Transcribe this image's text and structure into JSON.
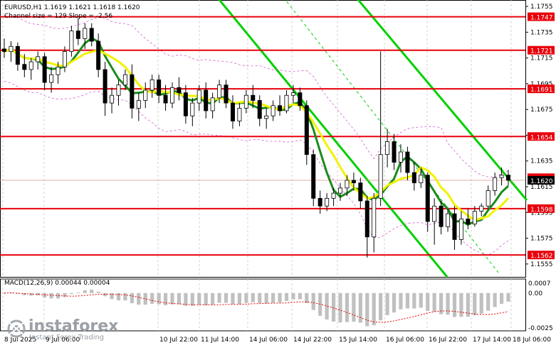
{
  "header": {
    "symbol_line": "EURUSD,H1  1.1619 1.1621 1.1618 1.1620",
    "channel_line": "Channel size = 129 Slope = -2.56"
  },
  "macd": {
    "label": "MACD(12,26,9) 0.00044 0.00004",
    "ticks": [
      "0.0007",
      "0.00",
      "-0.0025"
    ]
  },
  "watermark": {
    "brand": "instaforex",
    "tagline": "Instant Forex Trading"
  },
  "colors": {
    "level_line": "#e8000b",
    "level_label_bg": "#e8000b",
    "current_price_bg": "#000000",
    "channel": "#00d000",
    "ma_fast": "#f2f200",
    "ma_slow": "#1a8c1a",
    "envelope": "#d25ad2",
    "candle": "#000000",
    "macd_hist": "#c0c0c0",
    "macd_signal": "#e80000"
  },
  "chart_data": {
    "type": "candlestick",
    "symbol": "EURUSD",
    "timeframe": "H1",
    "ylim": [
      1.1545,
      1.176
    ],
    "y_ticks": [
      "1.1755",
      "1.1735",
      "1.1715",
      "1.1695",
      "1.1675",
      "1.1655",
      "1.1635",
      "1.1615",
      "1.1595",
      "1.1575",
      "1.1555"
    ],
    "x_ticks": [
      "8 Jul 2025",
      "9 Jul 06:00",
      "10 Jul 22:00",
      "11 Jul 14:00",
      "14 Jul 06:00",
      "14 Jul 22:00",
      "15 Jul 14:00",
      "16 Jul 06:00",
      "16 Jul 22:00",
      "17 Jul 14:00",
      "18 Jul 06:00"
    ],
    "levels": [
      {
        "value": 1.1747,
        "label": "1.1747"
      },
      {
        "value": 1.1721,
        "label": "1.1721"
      },
      {
        "value": 1.1691,
        "label": "1.1691"
      },
      {
        "value": 1.1654,
        "label": "1.1654"
      },
      {
        "value": 1.1598,
        "label": "1.1598"
      },
      {
        "value": 1.1562,
        "label": "1.1562"
      }
    ],
    "current_price": {
      "value": 1.162,
      "label": "1.1620"
    },
    "hidden_level_label": "1.1622",
    "ohlc": [
      {
        "o": 1.1722,
        "h": 1.173,
        "l": 1.1715,
        "c": 1.172
      },
      {
        "o": 1.172,
        "h": 1.1728,
        "l": 1.1712,
        "c": 1.1724
      },
      {
        "o": 1.1724,
        "h": 1.1727,
        "l": 1.1705,
        "c": 1.171
      },
      {
        "o": 1.171,
        "h": 1.1718,
        "l": 1.17,
        "c": 1.1706
      },
      {
        "o": 1.1706,
        "h": 1.1715,
        "l": 1.1698,
        "c": 1.1712
      },
      {
        "o": 1.1712,
        "h": 1.172,
        "l": 1.1706,
        "c": 1.1716
      },
      {
        "o": 1.1716,
        "h": 1.1719,
        "l": 1.169,
        "c": 1.1696
      },
      {
        "o": 1.1696,
        "h": 1.1708,
        "l": 1.1688,
        "c": 1.1702
      },
      {
        "o": 1.1702,
        "h": 1.1712,
        "l": 1.1695,
        "c": 1.1708
      },
      {
        "o": 1.1708,
        "h": 1.1724,
        "l": 1.1704,
        "c": 1.172
      },
      {
        "o": 1.172,
        "h": 1.174,
        "l": 1.1716,
        "c": 1.1736
      },
      {
        "o": 1.1736,
        "h": 1.1746,
        "l": 1.1725,
        "c": 1.173
      },
      {
        "o": 1.173,
        "h": 1.1742,
        "l": 1.1722,
        "c": 1.1738
      },
      {
        "o": 1.1738,
        "h": 1.1742,
        "l": 1.1724,
        "c": 1.1728
      },
      {
        "o": 1.1728,
        "h": 1.1734,
        "l": 1.17,
        "c": 1.1706
      },
      {
        "o": 1.1706,
        "h": 1.1712,
        "l": 1.167,
        "c": 1.168
      },
      {
        "o": 1.168,
        "h": 1.1692,
        "l": 1.1672,
        "c": 1.1686
      },
      {
        "o": 1.1686,
        "h": 1.1698,
        "l": 1.1678,
        "c": 1.1694
      },
      {
        "o": 1.1694,
        "h": 1.1706,
        "l": 1.169,
        "c": 1.1702
      },
      {
        "o": 1.1702,
        "h": 1.171,
        "l": 1.1668,
        "c": 1.1676
      },
      {
        "o": 1.1676,
        "h": 1.1688,
        "l": 1.1666,
        "c": 1.1682
      },
      {
        "o": 1.1682,
        "h": 1.1696,
        "l": 1.1676,
        "c": 1.169
      },
      {
        "o": 1.169,
        "h": 1.1702,
        "l": 1.1684,
        "c": 1.1698
      },
      {
        "o": 1.1698,
        "h": 1.1702,
        "l": 1.168,
        "c": 1.1686
      },
      {
        "o": 1.1686,
        "h": 1.1694,
        "l": 1.1674,
        "c": 1.168
      },
      {
        "o": 1.168,
        "h": 1.1696,
        "l": 1.1676,
        "c": 1.1692
      },
      {
        "o": 1.1692,
        "h": 1.17,
        "l": 1.1682,
        "c": 1.1688
      },
      {
        "o": 1.1688,
        "h": 1.1694,
        "l": 1.1664,
        "c": 1.167
      },
      {
        "o": 1.167,
        "h": 1.1684,
        "l": 1.1662,
        "c": 1.168
      },
      {
        "o": 1.168,
        "h": 1.1694,
        "l": 1.1674,
        "c": 1.169
      },
      {
        "o": 1.169,
        "h": 1.1696,
        "l": 1.1668,
        "c": 1.1674
      },
      {
        "o": 1.1674,
        "h": 1.1688,
        "l": 1.1668,
        "c": 1.1684
      },
      {
        "o": 1.1684,
        "h": 1.1698,
        "l": 1.168,
        "c": 1.1694
      },
      {
        "o": 1.1694,
        "h": 1.1698,
        "l": 1.1676,
        "c": 1.168
      },
      {
        "o": 1.168,
        "h": 1.1686,
        "l": 1.166,
        "c": 1.1666
      },
      {
        "o": 1.1666,
        "h": 1.168,
        "l": 1.1662,
        "c": 1.1676
      },
      {
        "o": 1.1676,
        "h": 1.169,
        "l": 1.1672,
        "c": 1.1686
      },
      {
        "o": 1.1686,
        "h": 1.1694,
        "l": 1.1676,
        "c": 1.1682
      },
      {
        "o": 1.1682,
        "h": 1.1686,
        "l": 1.1662,
        "c": 1.1668
      },
      {
        "o": 1.1668,
        "h": 1.1676,
        "l": 1.166,
        "c": 1.167
      },
      {
        "o": 1.167,
        "h": 1.1682,
        "l": 1.1666,
        "c": 1.1678
      },
      {
        "o": 1.1678,
        "h": 1.1686,
        "l": 1.167,
        "c": 1.1674
      },
      {
        "o": 1.1674,
        "h": 1.169,
        "l": 1.1672,
        "c": 1.1686
      },
      {
        "o": 1.1686,
        "h": 1.1694,
        "l": 1.168,
        "c": 1.1688
      },
      {
        "o": 1.1688,
        "h": 1.1692,
        "l": 1.1674,
        "c": 1.1678
      },
      {
        "o": 1.1678,
        "h": 1.1682,
        "l": 1.1632,
        "c": 1.164
      },
      {
        "o": 1.164,
        "h": 1.1644,
        "l": 1.16,
        "c": 1.1606
      },
      {
        "o": 1.1606,
        "h": 1.1612,
        "l": 1.1594,
        "c": 1.16
      },
      {
        "o": 1.16,
        "h": 1.161,
        "l": 1.1596,
        "c": 1.1606
      },
      {
        "o": 1.1606,
        "h": 1.1614,
        "l": 1.16,
        "c": 1.161
      },
      {
        "o": 1.161,
        "h": 1.1618,
        "l": 1.1604,
        "c": 1.1614
      },
      {
        "o": 1.1614,
        "h": 1.1624,
        "l": 1.1608,
        "c": 1.162
      },
      {
        "o": 1.162,
        "h": 1.1626,
        "l": 1.1612,
        "c": 1.1618
      },
      {
        "o": 1.1618,
        "h": 1.1622,
        "l": 1.1598,
        "c": 1.1604
      },
      {
        "o": 1.1604,
        "h": 1.1608,
        "l": 1.156,
        "c": 1.1576
      },
      {
        "o": 1.1576,
        "h": 1.161,
        "l": 1.1564,
        "c": 1.1606
      },
      {
        "o": 1.1606,
        "h": 1.172,
        "l": 1.16,
        "c": 1.164
      },
      {
        "o": 1.164,
        "h": 1.166,
        "l": 1.163,
        "c": 1.165
      },
      {
        "o": 1.165,
        "h": 1.1656,
        "l": 1.1628,
        "c": 1.1634
      },
      {
        "o": 1.1634,
        "h": 1.1648,
        "l": 1.1626,
        "c": 1.1642
      },
      {
        "o": 1.1642,
        "h": 1.1646,
        "l": 1.162,
        "c": 1.1626
      },
      {
        "o": 1.1626,
        "h": 1.1634,
        "l": 1.1612,
        "c": 1.1618
      },
      {
        "o": 1.1618,
        "h": 1.163,
        "l": 1.1614,
        "c": 1.1624
      },
      {
        "o": 1.1624,
        "h": 1.1626,
        "l": 1.158,
        "c": 1.1588
      },
      {
        "o": 1.1588,
        "h": 1.1606,
        "l": 1.157,
        "c": 1.16
      },
      {
        "o": 1.16,
        "h": 1.1604,
        "l": 1.1578,
        "c": 1.1584
      },
      {
        "o": 1.1584,
        "h": 1.1598,
        "l": 1.158,
        "c": 1.1594
      },
      {
        "o": 1.1594,
        "h": 1.16,
        "l": 1.1566,
        "c": 1.1574
      },
      {
        "o": 1.1574,
        "h": 1.1596,
        "l": 1.157,
        "c": 1.159
      },
      {
        "o": 1.159,
        "h": 1.1598,
        "l": 1.1582,
        "c": 1.1586
      },
      {
        "o": 1.1586,
        "h": 1.16,
        "l": 1.1584,
        "c": 1.1596
      },
      {
        "o": 1.1596,
        "h": 1.1602,
        "l": 1.1592,
        "c": 1.16
      },
      {
        "o": 1.16,
        "h": 1.1616,
        "l": 1.1598,
        "c": 1.1612
      },
      {
        "o": 1.1612,
        "h": 1.1626,
        "l": 1.1608,
        "c": 1.1622
      },
      {
        "o": 1.1622,
        "h": 1.163,
        "l": 1.1616,
        "c": 1.1624
      },
      {
        "o": 1.1624,
        "h": 1.1628,
        "l": 1.1616,
        "c": 1.162
      }
    ]
  }
}
